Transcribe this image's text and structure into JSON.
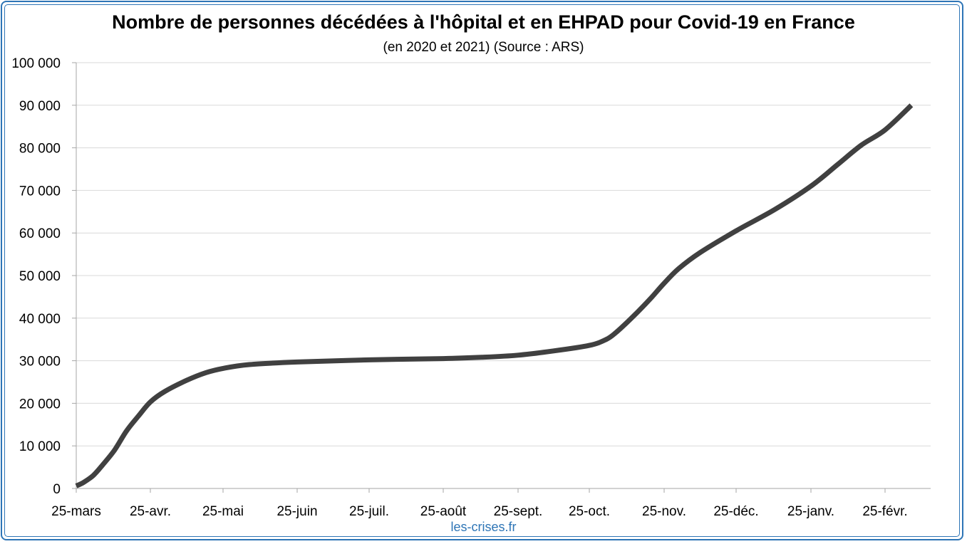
{
  "chart_data": {
    "type": "line",
    "title": "Nombre de personnes décédées à l'hôpital et en EHPAD pour Covid-19 en France",
    "subtitle": "(en 2020 et 2021) (Source : ARS)",
    "source": "les-crises.fr",
    "ylim": [
      0,
      100000
    ],
    "yticks": [
      0,
      10000,
      20000,
      30000,
      40000,
      50000,
      60000,
      70000,
      80000,
      90000,
      100000
    ],
    "ytick_labels": [
      "0",
      "10 000",
      "20 000",
      "30 000",
      "40 000",
      "50 000",
      "60 000",
      "70 000",
      "80 000",
      "90 000",
      "100 000"
    ],
    "categories": [
      "25-mars",
      "25-avr.",
      "25-mai",
      "25-juin",
      "25-juil.",
      "25-août",
      "25-sept.",
      "25-oct.",
      "25-nov.",
      "25-déc.",
      "25-janv.",
      "25-févr."
    ],
    "grid": true,
    "line_color": "#404040",
    "series": [
      {
        "x": [
          "2020-03-25",
          "2020-03-28",
          "2020-04-01",
          "2020-04-05",
          "2020-04-10",
          "2020-04-15",
          "2020-04-20",
          "2020-04-25",
          "2020-05-01",
          "2020-05-10",
          "2020-05-18",
          "2020-05-25",
          "2020-06-05",
          "2020-06-25",
          "2020-07-25",
          "2020-08-25",
          "2020-09-10",
          "2020-09-25",
          "2020-10-10",
          "2020-10-25",
          "2020-11-01",
          "2020-11-05",
          "2020-11-10",
          "2020-11-15",
          "2020-11-20",
          "2020-11-25",
          "2020-12-01",
          "2020-12-10",
          "2020-12-25",
          "2021-01-10",
          "2021-01-25",
          "2021-02-05",
          "2021-02-15",
          "2021-02-25",
          "2021-03-08"
        ],
        "y": [
          600,
          1400,
          3000,
          5500,
          9000,
          13500,
          17000,
          20300,
          22800,
          25400,
          27200,
          28200,
          29100,
          29700,
          30200,
          30500,
          30800,
          31300,
          32300,
          33600,
          35000,
          36600,
          39200,
          42000,
          45000,
          48200,
          51600,
          55400,
          60500,
          65500,
          71000,
          76000,
          80600,
          84200,
          90000
        ]
      }
    ]
  }
}
